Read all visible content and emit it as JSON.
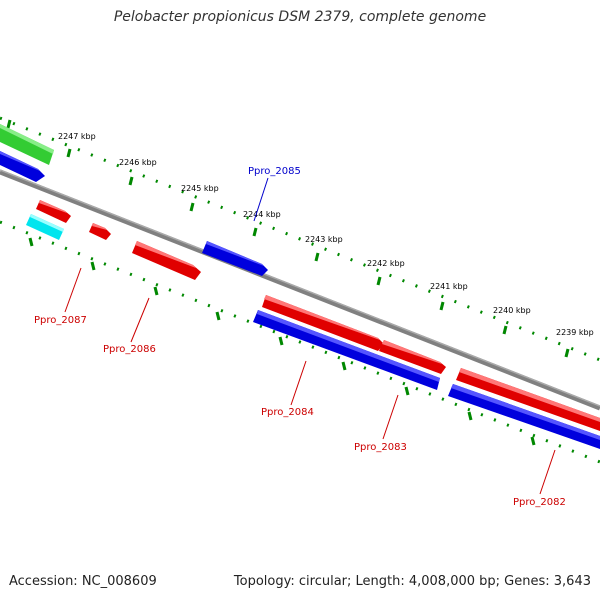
{
  "title": "Pelobacter propionicus DSM 2379, complete genome",
  "footer": {
    "accession": "Accession: NC_008609",
    "topology": "Topology: circular; Length: 4,008,000 bp; Genes: 3,643"
  },
  "scale_labels": [
    "2247 kbp",
    "2246 kbp",
    "2245 kbp",
    "2244 kbp",
    "2243 kbp",
    "2242 kbp",
    "2241 kbp",
    "2240 kbp",
    "2239 kbp"
  ],
  "genes": [
    {
      "label": "Ppro_2085",
      "color": "#0000cc"
    },
    {
      "label": "Ppro_2087",
      "color": "#cc0000"
    },
    {
      "label": "Ppro_2086",
      "color": "#cc0000"
    },
    {
      "label": "Ppro_2084",
      "color": "#cc0000"
    },
    {
      "label": "Ppro_2083",
      "color": "#cc0000"
    },
    {
      "label": "Ppro_2082",
      "color": "#cc0000"
    }
  ],
  "colors": {
    "forward_cds": "#e00000",
    "reverse_cds": "#0000dd",
    "rna": "#33cc33",
    "other": "#00e5ee",
    "backbone": "#808080",
    "ticks": "#008800"
  }
}
